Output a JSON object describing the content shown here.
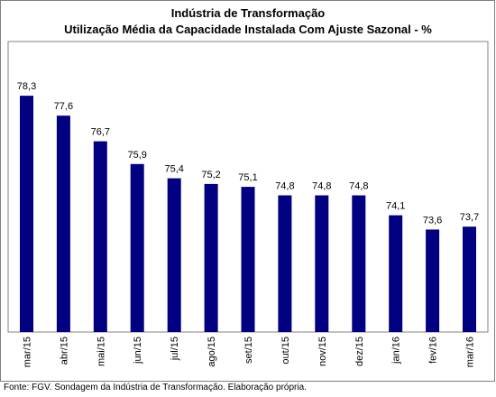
{
  "chart_data": {
    "type": "bar",
    "title": "Indústria de Transformação",
    "subtitle": "Utilização Média da Capacidade Instalada Com Ajuste Sazonal - %",
    "categories": [
      "mar/15",
      "abr/15",
      "mai/15",
      "jun/15",
      "jul/15",
      "ago/15",
      "set/15",
      "out/15",
      "nov/15",
      "dez/15",
      "jan/16",
      "fev/16",
      "mar/16"
    ],
    "values": [
      78.3,
      77.6,
      76.7,
      75.9,
      75.4,
      75.2,
      75.1,
      74.8,
      74.8,
      74.8,
      74.1,
      73.6,
      73.7
    ],
    "value_labels": [
      "78,3",
      "77,6",
      "76,7",
      "75,9",
      "75,4",
      "75,2",
      "75,1",
      "74,8",
      "74,8",
      "74,8",
      "74,1",
      "73,6",
      "73,7"
    ],
    "ylim": [
      70,
      79
    ],
    "xlabel": "",
    "ylabel": "",
    "grid": false,
    "legend": "none",
    "bar_color": "#000080"
  },
  "footer": {
    "source": "Fonte: FGV. Sondagem da Indústria de Transformação. Elaboração própria."
  }
}
